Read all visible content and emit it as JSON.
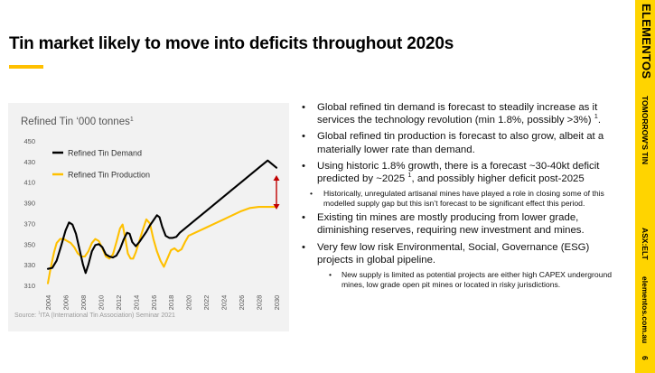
{
  "slide": {
    "title": "Tin market likely to move into deficits throughout 2020s",
    "page_number": "6"
  },
  "brand": {
    "name": "ELEMENTOS",
    "tagline": "TOMORROW'S TIN",
    "ticker": "ASX:ELT",
    "website": "elementos.com.au",
    "accent_color": "#ffc000"
  },
  "chart_source": {
    "prefix": "Source: ",
    "sup": "1",
    "text": "ITA (International Tin Association) Seminar 2021"
  },
  "chart_data": {
    "type": "line",
    "title": "Refined Tin ‘000 tonnes",
    "title_sup": "1",
    "xlabel": "",
    "ylabel": "",
    "ylim": [
      310,
      450
    ],
    "yticks": [
      310,
      330,
      350,
      370,
      390,
      410,
      430,
      450
    ],
    "xlim": [
      2004,
      2030
    ],
    "xticks": [
      2004,
      2006,
      2008,
      2010,
      2012,
      2014,
      2016,
      2018,
      2020,
      2022,
      2024,
      2026,
      2028,
      2030
    ],
    "grid": false,
    "legend_position": "top-left",
    "series": [
      {
        "name": "Refined Tin Demand",
        "color": "#000000",
        "points": [
          [
            2004.0,
            326
          ],
          [
            2004.5,
            327
          ],
          [
            2005.0,
            334
          ],
          [
            2005.5,
            348
          ],
          [
            2006.0,
            363
          ],
          [
            2006.4,
            371
          ],
          [
            2006.8,
            369
          ],
          [
            2007.2,
            360
          ],
          [
            2007.6,
            345
          ],
          [
            2008.0,
            330
          ],
          [
            2008.3,
            322
          ],
          [
            2008.6,
            330
          ],
          [
            2009.0,
            343
          ],
          [
            2009.4,
            349
          ],
          [
            2009.8,
            350
          ],
          [
            2010.2,
            347
          ],
          [
            2010.6,
            340
          ],
          [
            2011.0,
            338
          ],
          [
            2011.4,
            337
          ],
          [
            2011.8,
            339
          ],
          [
            2012.2,
            345
          ],
          [
            2012.6,
            354
          ],
          [
            2013.0,
            361
          ],
          [
            2013.3,
            360
          ],
          [
            2013.6,
            352
          ],
          [
            2014.0,
            348
          ],
          [
            2014.4,
            352
          ],
          [
            2014.8,
            357
          ],
          [
            2015.2,
            362
          ],
          [
            2015.6,
            368
          ],
          [
            2016.0,
            373
          ],
          [
            2016.4,
            378
          ],
          [
            2016.7,
            376
          ],
          [
            2017.0,
            367
          ],
          [
            2017.4,
            358
          ],
          [
            2017.8,
            356
          ],
          [
            2018.2,
            356
          ],
          [
            2018.6,
            357
          ],
          [
            2019.0,
            361
          ],
          [
            2020,
            368
          ],
          [
            2021,
            375
          ],
          [
            2022,
            382
          ],
          [
            2023,
            389
          ],
          [
            2024,
            396
          ],
          [
            2025,
            403
          ],
          [
            2026,
            410
          ],
          [
            2027,
            417
          ],
          [
            2028,
            424
          ],
          [
            2029,
            431
          ],
          [
            2030,
            424
          ]
        ]
      },
      {
        "name": "Refined Tin Production",
        "color": "#ffc000",
        "points": [
          [
            2004.0,
            312
          ],
          [
            2004.3,
            326
          ],
          [
            2004.7,
            342
          ],
          [
            2005.0,
            351
          ],
          [
            2005.4,
            355
          ],
          [
            2005.8,
            355
          ],
          [
            2006.2,
            353
          ],
          [
            2006.6,
            351
          ],
          [
            2007.0,
            347
          ],
          [
            2007.4,
            341
          ],
          [
            2007.8,
            338
          ],
          [
            2008.2,
            338
          ],
          [
            2008.6,
            343
          ],
          [
            2009.0,
            351
          ],
          [
            2009.4,
            355
          ],
          [
            2009.8,
            353
          ],
          [
            2010.2,
            346
          ],
          [
            2010.6,
            338
          ],
          [
            2011.0,
            336
          ],
          [
            2011.4,
            340
          ],
          [
            2011.8,
            352
          ],
          [
            2012.2,
            365
          ],
          [
            2012.5,
            369
          ],
          [
            2012.8,
            356
          ],
          [
            2013.1,
            341
          ],
          [
            2013.4,
            336
          ],
          [
            2013.7,
            336
          ],
          [
            2014.0,
            342
          ],
          [
            2014.4,
            353
          ],
          [
            2014.8,
            364
          ],
          [
            2015.2,
            374
          ],
          [
            2015.6,
            370
          ],
          [
            2016.0,
            355
          ],
          [
            2016.4,
            343
          ],
          [
            2016.8,
            334
          ],
          [
            2017.2,
            328
          ],
          [
            2017.6,
            336
          ],
          [
            2018.0,
            344
          ],
          [
            2018.4,
            346
          ],
          [
            2018.8,
            343
          ],
          [
            2019.2,
            345
          ],
          [
            2019.6,
            352
          ],
          [
            2020.0,
            358
          ],
          [
            2021,
            362
          ],
          [
            2022,
            366
          ],
          [
            2023,
            370
          ],
          [
            2024,
            374
          ],
          [
            2025,
            378
          ],
          [
            2026,
            382
          ],
          [
            2027,
            385
          ],
          [
            2028,
            386
          ],
          [
            2029,
            386
          ],
          [
            2030,
            386
          ]
        ]
      }
    ]
  },
  "bullets": [
    {
      "level": 1,
      "text": "Global refined tin demand is forecast to steadily increase as it services the technology revolution (min 1.8%, possibly >3%) ",
      "sup": "1",
      "tail": "."
    },
    {
      "level": 1,
      "text": "Global refined tin production is forecast to also grow, albeit at a materially lower rate than demand.",
      "sup": "",
      "tail": ""
    },
    {
      "level": 1,
      "text": "Using historic 1.8% growth, there is a forecast ~30-40kt deficit predicted by ~2025 ",
      "sup": "1",
      "tail": ", and possibly higher deficit post-2025"
    },
    {
      "level": 2,
      "text": "Historically, unregulated artisanal mines have played a role in closing some of this modelled supply gap but this isn’t forecast to be significant effect this period.",
      "sup": "",
      "tail": ""
    },
    {
      "level": 1,
      "text": "Existing tin mines are mostly producing from lower grade, diminishing reserves, requiring new investment and mines.",
      "sup": "",
      "tail": ""
    },
    {
      "level": 1,
      "text": "Very few low risk Environmental, Social, Governance (ESG) projects in global pipeline.",
      "sup": "",
      "tail": ""
    },
    {
      "level": 3,
      "text": "New supply is limited as potential projects are either high CAPEX underground mines, low grade open pit mines or located in risky jurisdictions.",
      "sup": "",
      "tail": ""
    }
  ]
}
